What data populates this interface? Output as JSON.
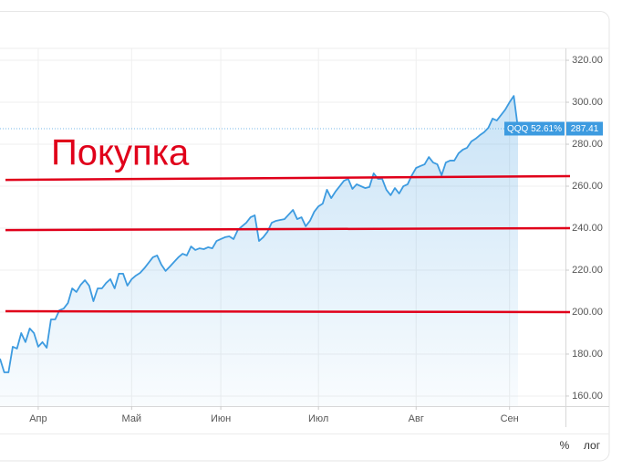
{
  "chart_data": {
    "type": "area",
    "series": [
      {
        "name": "QQQ",
        "color": "#3d9be0",
        "values": [
          177.8,
          171.3,
          171.3,
          183.5,
          182.6,
          190.0,
          185.7,
          192.2,
          190.0,
          183.5,
          185.7,
          183.0,
          196.5,
          196.5,
          200.9,
          201.7,
          204.3,
          211.3,
          209.6,
          213.0,
          215.2,
          212.6,
          205.2,
          211.3,
          211.3,
          213.9,
          215.7,
          211.3,
          218.3,
          218.3,
          212.6,
          215.7,
          217.4,
          218.7,
          220.9,
          223.5,
          226.1,
          227.0,
          222.6,
          219.6,
          221.7,
          223.9,
          226.1,
          227.8,
          227.0,
          231.3,
          229.6,
          230.4,
          230.0,
          230.9,
          230.4,
          233.9,
          234.8,
          235.7,
          236.1,
          234.8,
          239.1,
          240.9,
          242.6,
          245.2,
          246.1,
          233.9,
          235.7,
          238.3,
          242.6,
          243.5,
          243.9,
          244.3,
          246.5,
          248.7,
          244.3,
          245.2,
          240.9,
          243.5,
          247.8,
          250.4,
          251.7,
          258.3,
          254.3,
          257.4,
          260.0,
          262.6,
          263.5,
          258.7,
          260.9,
          260.0,
          259.1,
          259.6,
          266.1,
          263.5,
          263.5,
          258.3,
          255.7,
          259.1,
          256.5,
          260.0,
          260.9,
          265.2,
          268.7,
          269.6,
          270.4,
          273.9,
          271.3,
          270.4,
          265.2,
          271.3,
          272.2,
          272.2,
          275.7,
          277.4,
          278.3,
          281.3,
          282.6,
          284.3,
          285.7,
          287.8,
          292.2,
          291.3,
          293.9,
          296.5,
          300.0,
          303.0,
          287.41
        ]
      }
    ],
    "xticks": [
      {
        "value": 9,
        "label": "Апр"
      },
      {
        "value": 31,
        "label": "Май"
      },
      {
        "value": 52,
        "label": "Июн"
      },
      {
        "value": 75,
        "label": "Июл"
      },
      {
        "value": 98,
        "label": "Авг"
      },
      {
        "value": 120,
        "label": "Сен"
      }
    ],
    "ylim": [
      155.2,
      324.8
    ],
    "yticks": [
      {
        "value": 160,
        "label": "160.00"
      },
      {
        "value": 180,
        "label": "180.00"
      },
      {
        "value": 200,
        "label": "200.00"
      },
      {
        "value": 220,
        "label": "220.00"
      },
      {
        "value": 240,
        "label": "240.00"
      },
      {
        "value": 260,
        "label": "260.00"
      },
      {
        "value": 280,
        "label": "280.00"
      },
      {
        "value": 300,
        "label": "300.00"
      },
      {
        "value": 320,
        "label": "320.00"
      }
    ],
    "grid": true,
    "last_price": 287.41,
    "symbol_label": "QQQ 52.61%",
    "annotation": "Покупка",
    "annotation_color": "#e0001a",
    "annotation_lines": [
      {
        "y": [
          263.0,
          264.8
        ]
      },
      {
        "y": [
          239.1,
          240.0
        ]
      },
      {
        "y": [
          200.4,
          200.0
        ]
      }
    ],
    "scale_buttons": [
      "%",
      "лог"
    ]
  }
}
